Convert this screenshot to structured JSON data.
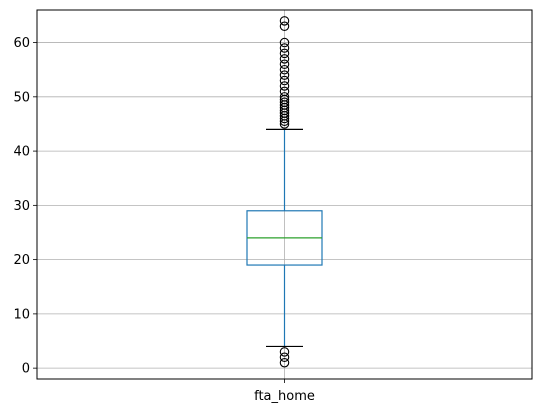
{
  "chart_data": {
    "type": "boxplot",
    "title": "",
    "xlabel": "",
    "ylabel": "",
    "grid": true,
    "ylim": [
      -2,
      66
    ],
    "yticks": [
      0,
      10,
      20,
      30,
      40,
      50,
      60
    ],
    "ytick_labels": [
      "0",
      "10",
      "20",
      "30",
      "40",
      "50",
      "60"
    ],
    "categories": [
      "fta_home"
    ],
    "boxes": [
      {
        "category": "fta_home",
        "whisker_low": 4,
        "q1": 19,
        "median": 24,
        "q3": 29,
        "whisker_high": 44,
        "outliers": [
          1,
          2,
          3,
          45,
          45.5,
          46,
          46.5,
          47,
          47.5,
          48,
          48.5,
          49,
          49.5,
          50,
          51,
          52,
          53,
          54,
          55,
          56,
          57,
          58,
          59,
          60,
          63,
          64
        ]
      }
    ],
    "colors": {
      "box": "#1f77b4",
      "median": "#2ca02c",
      "cap": "#000000",
      "outlier": "#000000",
      "grid": "#b0b0b0"
    }
  }
}
